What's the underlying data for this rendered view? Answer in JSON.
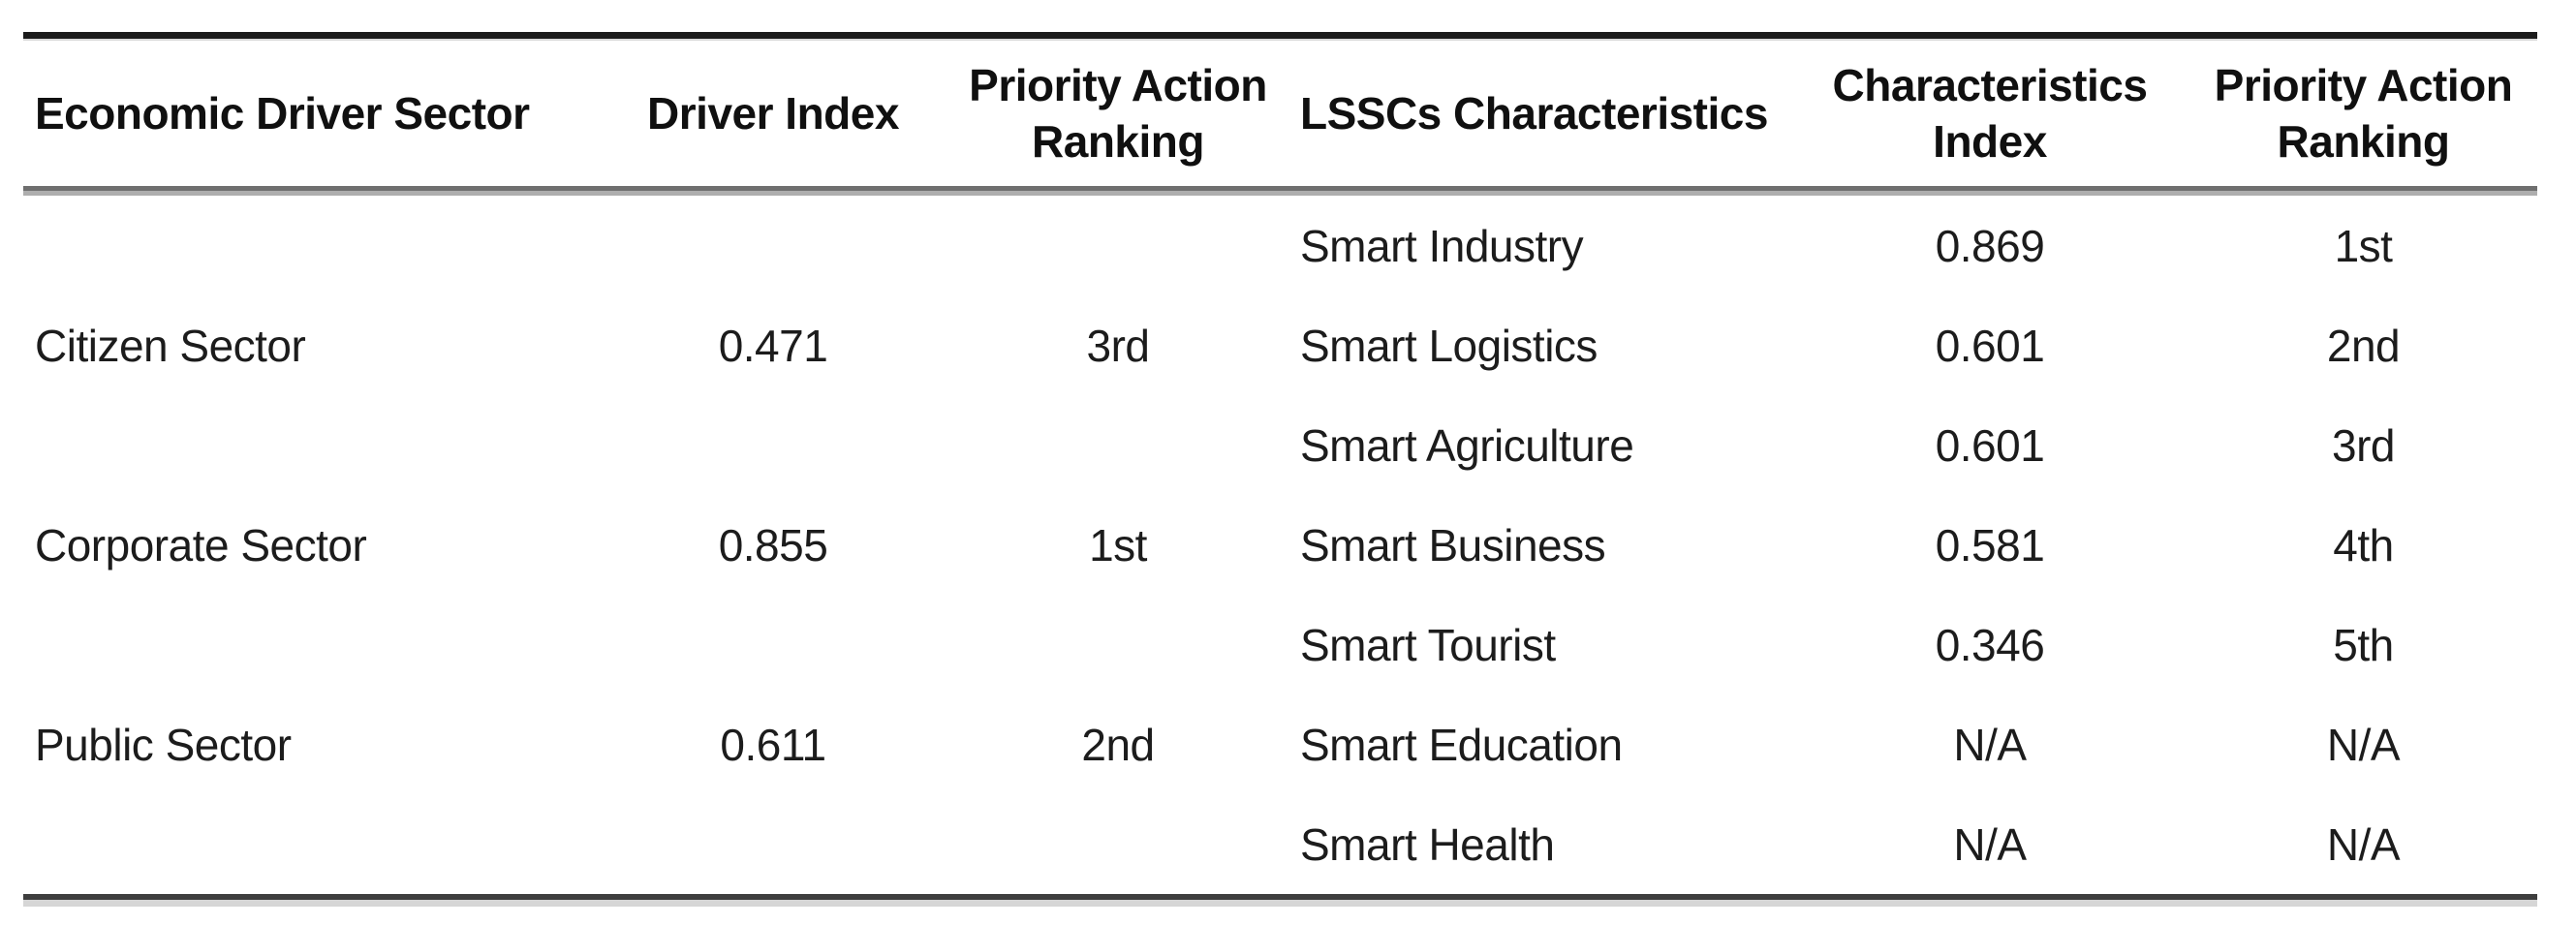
{
  "figure": {
    "type": "table",
    "columns": [
      {
        "id": "economic-driver-sector",
        "label": "Economic Driver Sector",
        "align": "left"
      },
      {
        "id": "driver-index",
        "label": "Driver Index",
        "align": "center"
      },
      {
        "id": "driver-priority-action-ranking",
        "label": "Priority Action\nRanking",
        "align": "center"
      },
      {
        "id": "lsscs-characteristics",
        "label": "LSSCs Characteristics",
        "align": "left"
      },
      {
        "id": "characteristics-index",
        "label": "Characteristics\nIndex",
        "align": "center"
      },
      {
        "id": "characteristics-priority-action-ranking",
        "label": "Priority Action\nRanking",
        "align": "center"
      }
    ],
    "rows": [
      {
        "cells": [
          "",
          "",
          "",
          "Smart Industry",
          "0.869",
          "1st"
        ]
      },
      {
        "cells": [
          "Citizen Sector",
          "0.471",
          "3rd",
          "Smart Logistics",
          "0.601",
          "2nd"
        ]
      },
      {
        "cells": [
          "",
          "",
          "",
          "Smart Agriculture",
          "0.601",
          "3rd"
        ]
      },
      {
        "cells": [
          "Corporate Sector",
          "0.855",
          "1st",
          "Smart Business",
          "0.581",
          "4th"
        ]
      },
      {
        "cells": [
          "",
          "",
          "",
          "Smart Tourist",
          "0.346",
          "5th"
        ]
      },
      {
        "cells": [
          "Public Sector",
          "0.611",
          "2nd",
          "Smart Education",
          "N/A",
          "N/A"
        ]
      },
      {
        "cells": [
          "",
          "",
          "",
          "Smart Health",
          "N/A",
          "N/A"
        ]
      }
    ],
    "colors": {
      "background": "#ffffff",
      "header_text": "#101010",
      "body_text": "#1c1c1c",
      "top_rule": "#1b1b1b",
      "mid_rule_dark": "#6f6f6f",
      "mid_rule_light": "#aeaeae",
      "bottom_rule_dark": "#3e3e3e",
      "bottom_rule_light": "#d6d6d6"
    }
  }
}
